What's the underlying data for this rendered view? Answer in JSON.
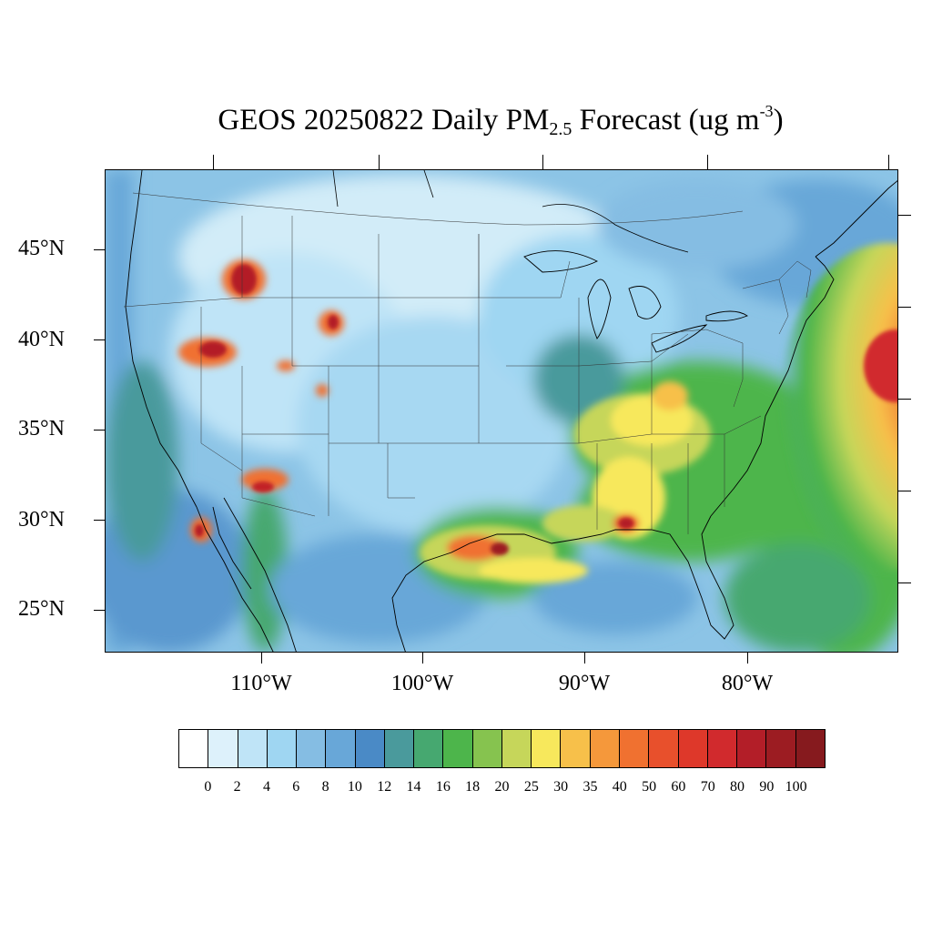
{
  "title": {
    "prefix": "GEOS 20250822 Daily PM",
    "sub": "2.5",
    "middle": " Forecast (ug m",
    "sup": "-3",
    "suffix": ")"
  },
  "map": {
    "lat_labels": [
      "45°N",
      "40°N",
      "35°N",
      "30°N",
      "25°N"
    ],
    "lon_labels": [
      "110°W",
      "100°W",
      "90°W",
      "80°W"
    ],
    "features": [
      "coastlines",
      "state-borders",
      "country-borders",
      "great-lakes"
    ],
    "hotspots": [
      {
        "region": "Idaho wildfire smoke",
        "category": "80-100"
      },
      {
        "region": "Nevada wildfire smoke",
        "category": "70-80"
      },
      {
        "region": "Arizona wildfire smoke",
        "category": "60-70"
      },
      {
        "region": "East Texas / Gulf Coast",
        "category": "60-80"
      },
      {
        "region": "Alabama",
        "category": "60-70"
      },
      {
        "region": "Atlantic offshore plume",
        "category": "50-70"
      },
      {
        "region": "Ohio Valley",
        "category": "25-35"
      }
    ]
  },
  "colorbar": {
    "labels": [
      "0",
      "2",
      "4",
      "6",
      "8",
      "10",
      "12",
      "14",
      "16",
      "18",
      "20",
      "25",
      "30",
      "35",
      "40",
      "50",
      "60",
      "70",
      "80",
      "90",
      "100"
    ],
    "colors": [
      "#ffffff",
      "#ddf1fb",
      "#bfe4f7",
      "#9fd6f2",
      "#85bde3",
      "#68a7d8",
      "#4a8ac6",
      "#4a9a9c",
      "#46a870",
      "#4db54b",
      "#86c34f",
      "#c6d65a",
      "#f7e85c",
      "#f7c04a",
      "#f5983b",
      "#f07130",
      "#e8502c",
      "#de382a",
      "#d12a2d",
      "#b31e28",
      "#9c1c22",
      "#861a1e"
    ]
  }
}
